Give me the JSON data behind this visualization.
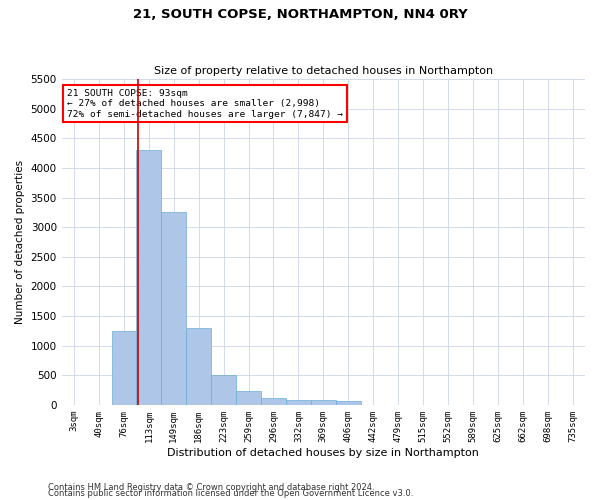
{
  "title": "21, SOUTH COPSE, NORTHAMPTON, NN4 0RY",
  "subtitle": "Size of property relative to detached houses in Northampton",
  "xlabel": "Distribution of detached houses by size in Northampton",
  "ylabel": "Number of detached properties",
  "footnote1": "Contains HM Land Registry data © Crown copyright and database right 2024.",
  "footnote2": "Contains public sector information licensed under the Open Government Licence v3.0.",
  "annotation_line1": "21 SOUTH COPSE: 93sqm",
  "annotation_line2": "← 27% of detached houses are smaller (2,998)",
  "annotation_line3": "72% of semi-detached houses are larger (7,847) →",
  "bar_color": "#aec6e8",
  "bar_edge_color": "#6baed6",
  "red_line_color": "#cc0000",
  "categories": [
    "3sqm",
    "40sqm",
    "76sqm",
    "113sqm",
    "149sqm",
    "186sqm",
    "223sqm",
    "259sqm",
    "296sqm",
    "332sqm",
    "369sqm",
    "406sqm",
    "442sqm",
    "479sqm",
    "515sqm",
    "552sqm",
    "589sqm",
    "625sqm",
    "662sqm",
    "698sqm",
    "735sqm"
  ],
  "values": [
    0,
    0,
    1250,
    4300,
    3250,
    1300,
    500,
    230,
    110,
    80,
    80,
    70,
    0,
    0,
    0,
    0,
    0,
    0,
    0,
    0,
    0
  ],
  "red_line_x": 2.55,
  "ylim": [
    0,
    5500
  ],
  "yticks": [
    0,
    500,
    1000,
    1500,
    2000,
    2500,
    3000,
    3500,
    4000,
    4500,
    5000,
    5500
  ],
  "background_color": "#ffffff",
  "grid_color": "#ccd6e8"
}
